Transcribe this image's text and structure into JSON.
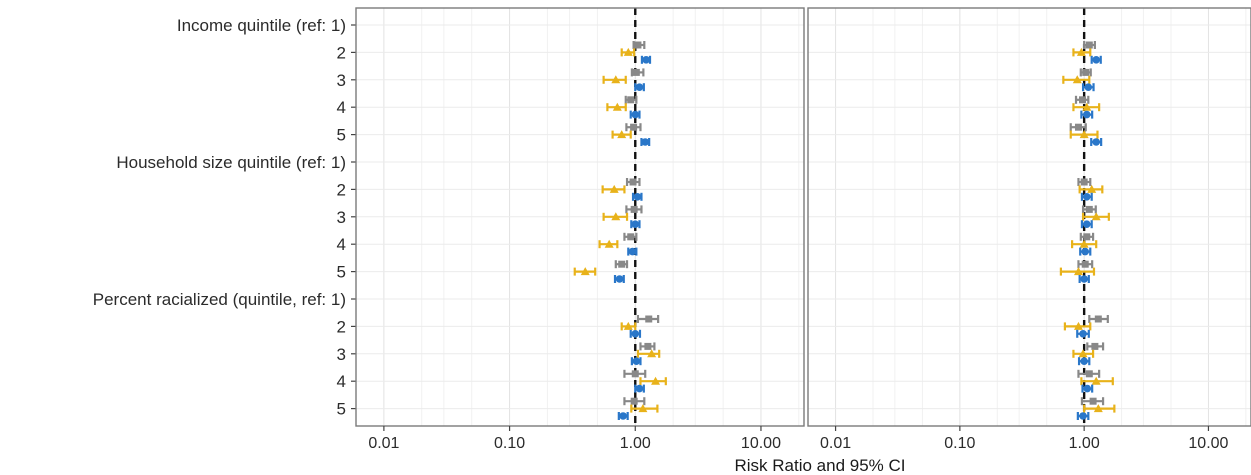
{
  "chart_data": {
    "type": "forest",
    "xscale": "log",
    "xlabel": "Risk Ratio and 95% CI",
    "xlim": [
      0.006,
      22
    ],
    "reference_line": 1.0,
    "x_ticks": [
      {
        "value": 0.01,
        "label": "0.01"
      },
      {
        "value": 0.1,
        "label": "0.10"
      },
      {
        "value": 1.0,
        "label": "1.00"
      },
      {
        "value": 10.0,
        "label": "10.00"
      }
    ],
    "grid": true,
    "rows": [
      {
        "label": "Income quintile (ref: 1)",
        "header": true
      },
      {
        "label": "2"
      },
      {
        "label": "3"
      },
      {
        "label": "4"
      },
      {
        "label": "5"
      },
      {
        "label": "Household size quintile (ref: 1)",
        "header": true
      },
      {
        "label": "2"
      },
      {
        "label": "3"
      },
      {
        "label": "4"
      },
      {
        "label": "5"
      },
      {
        "label": "Percent racialized (quintile, ref: 1)",
        "header": true
      },
      {
        "label": "2"
      },
      {
        "label": "3"
      },
      {
        "label": "4"
      },
      {
        "label": "5"
      }
    ],
    "series_styles": [
      {
        "color": "#888888",
        "marker": "square",
        "offset": -0.27
      },
      {
        "color": "#e8b21a",
        "marker": "triangle",
        "offset": 0.0
      },
      {
        "color": "#2a77c9",
        "marker": "circle",
        "offset": 0.27
      }
    ],
    "panels": [
      {
        "series": [
          {
            "est": [
              null,
              1.05,
              1.02,
              0.92,
              0.97,
              null,
              0.96,
              0.98,
              0.92,
              0.78,
              null,
              1.28,
              1.26,
              1.0,
              0.98
            ],
            "lo": [
              null,
              0.97,
              0.94,
              0.84,
              0.85,
              null,
              0.86,
              0.85,
              0.82,
              0.7,
              null,
              1.05,
              1.1,
              0.82,
              0.82
            ],
            "hi": [
              null,
              1.18,
              1.16,
              1.02,
              1.1,
              null,
              1.08,
              1.12,
              1.02,
              0.86,
              null,
              1.52,
              1.42,
              1.2,
              1.18
            ]
          },
          {
            "est": [
              null,
              0.88,
              0.7,
              0.72,
              0.78,
              null,
              0.68,
              0.7,
              0.62,
              0.4,
              null,
              0.88,
              1.35,
              1.45,
              1.15
            ],
            "lo": [
              null,
              0.78,
              0.56,
              0.6,
              0.66,
              null,
              0.55,
              0.56,
              0.52,
              0.33,
              null,
              0.78,
              1.05,
              1.1,
              0.93
            ],
            "hi": [
              null,
              0.98,
              0.84,
              0.84,
              0.92,
              null,
              0.82,
              0.86,
              0.72,
              0.48,
              null,
              1.0,
              1.55,
              1.75,
              1.5
            ]
          },
          {
            "est": [
              null,
              1.22,
              1.08,
              1.0,
              1.2,
              null,
              1.04,
              1.0,
              0.95,
              0.75,
              null,
              1.0,
              1.02,
              1.08,
              0.8
            ],
            "lo": [
              null,
              1.13,
              1.0,
              0.92,
              1.12,
              null,
              0.96,
              0.93,
              0.88,
              0.69,
              null,
              0.92,
              0.94,
              1.0,
              0.74
            ],
            "hi": [
              null,
              1.31,
              1.17,
              1.08,
              1.29,
              null,
              1.12,
              1.08,
              1.02,
              0.81,
              null,
              1.09,
              1.1,
              1.17,
              0.87
            ]
          }
        ]
      },
      {
        "series": [
          {
            "est": [
              null,
              1.1,
              1.03,
              0.97,
              0.9,
              null,
              1.0,
              1.1,
              1.05,
              1.02,
              null,
              1.3,
              1.22,
              1.1,
              1.18
            ],
            "lo": [
              null,
              1.0,
              0.94,
              0.86,
              0.78,
              null,
              0.9,
              0.98,
              0.94,
              0.9,
              null,
              1.1,
              1.06,
              0.9,
              0.96
            ],
            "hi": [
              null,
              1.22,
              1.13,
              1.08,
              1.03,
              null,
              1.12,
              1.24,
              1.18,
              1.16,
              null,
              1.55,
              1.42,
              1.32,
              1.42
            ]
          },
          {
            "est": [
              null,
              0.95,
              0.88,
              1.05,
              1.0,
              null,
              1.15,
              1.25,
              1.0,
              0.9,
              null,
              0.9,
              0.98,
              1.25,
              1.3
            ],
            "lo": [
              null,
              0.82,
              0.68,
              0.82,
              0.78,
              null,
              0.92,
              0.98,
              0.8,
              0.65,
              null,
              0.7,
              0.82,
              0.95,
              1.0
            ],
            "hi": [
              null,
              1.12,
              1.1,
              1.32,
              1.28,
              null,
              1.4,
              1.58,
              1.25,
              1.2,
              null,
              1.12,
              1.18,
              1.7,
              1.75
            ]
          },
          {
            "est": [
              null,
              1.25,
              1.08,
              1.05,
              1.25,
              null,
              1.05,
              1.05,
              1.02,
              1.0,
              null,
              0.98,
              1.0,
              1.06,
              0.98
            ],
            "lo": [
              null,
              1.15,
              0.98,
              0.95,
              1.14,
              null,
              0.96,
              0.96,
              0.93,
              0.92,
              null,
              0.88,
              0.91,
              0.97,
              0.89
            ],
            "hi": [
              null,
              1.36,
              1.19,
              1.16,
              1.37,
              null,
              1.15,
              1.15,
              1.12,
              1.09,
              null,
              1.09,
              1.1,
              1.16,
              1.08
            ]
          }
        ]
      }
    ]
  }
}
